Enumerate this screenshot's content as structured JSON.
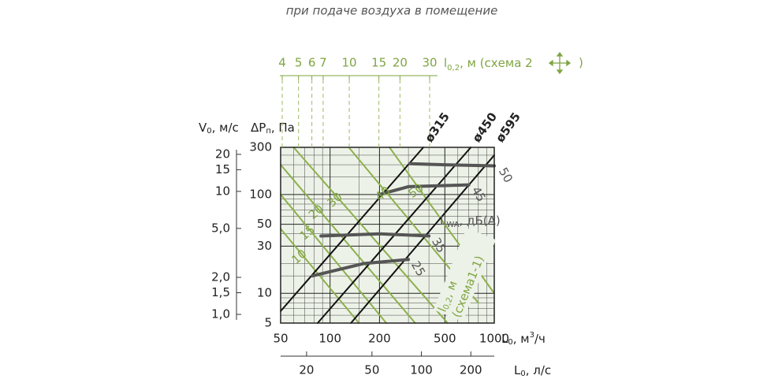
{
  "chart_data": {
    "type": "line",
    "subtitle": "при подаче воздуха в помещение",
    "x_scale": "log",
    "y_scale": "log",
    "xlim": [
      50,
      1000
    ],
    "xticks": [
      50,
      100,
      200,
      500,
      1000
    ],
    "ylim": [
      5,
      300
    ],
    "yticks": [
      300,
      100,
      50,
      30,
      10,
      5
    ],
    "grid_x": [
      60,
      70,
      80,
      90,
      150,
      300,
      400,
      600,
      700,
      800,
      900
    ],
    "grid_y": [
      6,
      7,
      8,
      9,
      15,
      20,
      40,
      60,
      70,
      80,
      90,
      150,
      200,
      250
    ],
    "y2lim": [
      0.85,
      22.8
    ],
    "y2ticks": [
      {
        "value": 20,
        "label": "20"
      },
      {
        "value": 15,
        "label": "15"
      },
      {
        "value": 10,
        "label": "10"
      },
      {
        "value": 5,
        "label": "5,0"
      },
      {
        "value": 2,
        "label": "2,0"
      },
      {
        "value": 1.5,
        "label": "1,5"
      },
      {
        "value": 1,
        "label": "1,0"
      }
    ],
    "x2lim": [
      4,
      30
    ],
    "x2ticks": [
      4,
      5,
      6,
      7,
      10,
      15,
      20,
      30
    ],
    "x3lim": [
      13.9,
      277.8
    ],
    "x3ticks": [
      20,
      50,
      100,
      200
    ],
    "xlabel": {
      "main": "L",
      "sub": "0",
      "rest": ", м",
      "sup": "3",
      "end": "/ч"
    },
    "x3label": {
      "main": "L",
      "sub": "0",
      "rest": ", л/с"
    },
    "x2label": {
      "main": "l",
      "sub": "0,2",
      "rest": ", м (схема 2",
      "end": ")"
    },
    "ylabel": {
      "main": "ΔP",
      "sub": "п",
      "rest": ", Па"
    },
    "y2label": {
      "main": "V",
      "sub": "0",
      "rest": ", м/с"
    },
    "noise_label": {
      "main": "L",
      "sub": "WA",
      "rest": ", дБ(А)"
    },
    "throw_label": {
      "main": "l",
      "sub": "0,2",
      "rest": ", м",
      "end": "(схема1-1)"
    },
    "series": [
      {
        "name": "ø315",
        "color": "#111111",
        "x": [
          50,
          370
        ],
        "values": [
          6.6,
          300
        ]
      },
      {
        "name": "ø450",
        "color": "#111111",
        "x": [
          84,
          720
        ],
        "values": [
          5,
          300
        ]
      },
      {
        "name": "ø595",
        "color": "#111111",
        "x": [
          134,
          1000
        ],
        "values": [
          5,
          250
        ]
      }
    ],
    "noise_series": [
      {
        "name": "50",
        "color": "#555555",
        "x": [
          306,
          500,
          1000
        ],
        "values": [
          205,
          200,
          195
        ]
      },
      {
        "name": "45",
        "color": "#555555",
        "x": [
          200,
          300,
          700
        ],
        "values": [
          100,
          120,
          125
        ]
      },
      {
        "name": "35",
        "color": "#555555",
        "x": [
          88,
          200,
          400
        ],
        "values": [
          38,
          40,
          38
        ]
      },
      {
        "name": "25",
        "color": "#555555",
        "x": [
          78,
          160,
          300
        ],
        "values": [
          15,
          20,
          22
        ]
      }
    ],
    "throw_series": [
      {
        "name": "10",
        "color": "#8db04e",
        "x": [
          50,
          150
        ],
        "values": [
          45,
          5
        ]
      },
      {
        "name": "15",
        "color": "#8db04e",
        "x": [
          50,
          220
        ],
        "values": [
          100,
          5
        ]
      },
      {
        "name": "20",
        "color": "#8db04e",
        "x": [
          50,
          330
        ],
        "values": [
          200,
          5
        ]
      },
      {
        "name": "30",
        "color": "#8db04e",
        "x": [
          60,
          520
        ],
        "values": [
          300,
          5
        ]
      },
      {
        "name": "40",
        "color": "#8db04e",
        "x": [
          130,
          800
        ],
        "values": [
          300,
          8
        ]
      },
      {
        "name": "50",
        "color": "#8db04e",
        "x": [
          230,
          1000
        ],
        "values": [
          300,
          10
        ]
      }
    ]
  }
}
